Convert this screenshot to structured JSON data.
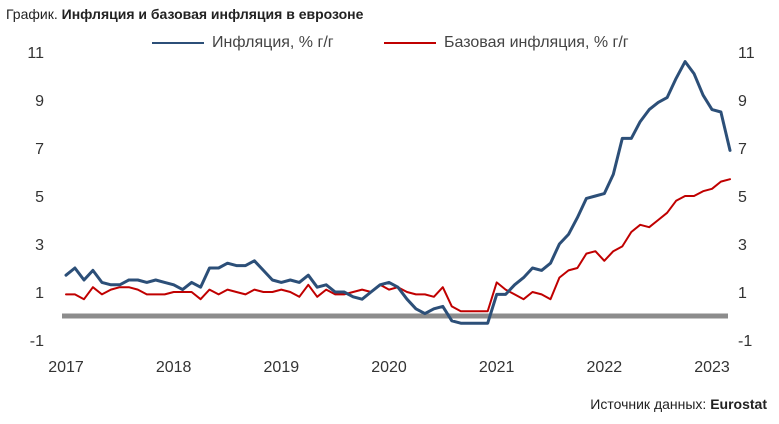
{
  "title_prefix": "График.",
  "title_main": "Инфляция и базовая инфляция в еврозоне",
  "source_label": "Источник данных:",
  "source_name": "Eurostat",
  "colors": {
    "inflation": "#2c4f78",
    "core": "#c00000",
    "zero_line": "#8c8c8c",
    "axis_text": "#333333"
  },
  "chart_data": {
    "type": "line",
    "title": "Инфляция и базовая инфляция в еврозоне",
    "xlabel": "",
    "ylabel": "",
    "ylim": [
      -1,
      11
    ],
    "xlim": [
      2017.0,
      2023.25
    ],
    "y_ticks": [
      -1,
      1,
      3,
      5,
      7,
      9,
      11
    ],
    "x_ticks": [
      2017,
      2018,
      2019,
      2020,
      2021,
      2022,
      2023
    ],
    "x_tick_labels": [
      "2017",
      "2018",
      "2019",
      "2020",
      "2021",
      "2022",
      "2023"
    ],
    "y_tick_labels": [
      "-1",
      "1",
      "3",
      "5",
      "7",
      "9",
      "11"
    ],
    "zero_line": 0,
    "legend_position": "top",
    "series": [
      {
        "name": "Инфляция, % г/г",
        "values": [
          [
            2017.0,
            1.7
          ],
          [
            2017.083,
            2.0
          ],
          [
            2017.167,
            1.5
          ],
          [
            2017.25,
            1.9
          ],
          [
            2017.333,
            1.4
          ],
          [
            2017.417,
            1.3
          ],
          [
            2017.5,
            1.3
          ],
          [
            2017.583,
            1.5
          ],
          [
            2017.667,
            1.5
          ],
          [
            2017.75,
            1.4
          ],
          [
            2017.833,
            1.5
          ],
          [
            2017.917,
            1.4
          ],
          [
            2018.0,
            1.3
          ],
          [
            2018.083,
            1.1
          ],
          [
            2018.167,
            1.4
          ],
          [
            2018.25,
            1.2
          ],
          [
            2018.333,
            2.0
          ],
          [
            2018.417,
            2.0
          ],
          [
            2018.5,
            2.2
          ],
          [
            2018.583,
            2.1
          ],
          [
            2018.667,
            2.1
          ],
          [
            2018.75,
            2.3
          ],
          [
            2018.833,
            1.9
          ],
          [
            2018.917,
            1.5
          ],
          [
            2019.0,
            1.4
          ],
          [
            2019.083,
            1.5
          ],
          [
            2019.167,
            1.4
          ],
          [
            2019.25,
            1.7
          ],
          [
            2019.333,
            1.2
          ],
          [
            2019.417,
            1.3
          ],
          [
            2019.5,
            1.0
          ],
          [
            2019.583,
            1.0
          ],
          [
            2019.667,
            0.8
          ],
          [
            2019.75,
            0.7
          ],
          [
            2019.833,
            1.0
          ],
          [
            2019.917,
            1.3
          ],
          [
            2020.0,
            1.4
          ],
          [
            2020.083,
            1.2
          ],
          [
            2020.167,
            0.7
          ],
          [
            2020.25,
            0.3
          ],
          [
            2020.333,
            0.1
          ],
          [
            2020.417,
            0.3
          ],
          [
            2020.5,
            0.4
          ],
          [
            2020.583,
            -0.2
          ],
          [
            2020.667,
            -0.3
          ],
          [
            2020.75,
            -0.3
          ],
          [
            2020.833,
            -0.3
          ],
          [
            2020.917,
            -0.3
          ],
          [
            2021.0,
            0.9
          ],
          [
            2021.083,
            0.9
          ],
          [
            2021.167,
            1.3
          ],
          [
            2021.25,
            1.6
          ],
          [
            2021.333,
            2.0
          ],
          [
            2021.417,
            1.9
          ],
          [
            2021.5,
            2.2
          ],
          [
            2021.583,
            3.0
          ],
          [
            2021.667,
            3.4
          ],
          [
            2021.75,
            4.1
          ],
          [
            2021.833,
            4.9
          ],
          [
            2021.917,
            5.0
          ],
          [
            2022.0,
            5.1
          ],
          [
            2022.083,
            5.9
          ],
          [
            2022.167,
            7.4
          ],
          [
            2022.25,
            7.4
          ],
          [
            2022.333,
            8.1
          ],
          [
            2022.417,
            8.6
          ],
          [
            2022.5,
            8.9
          ],
          [
            2022.583,
            9.1
          ],
          [
            2022.667,
            9.9
          ],
          [
            2022.75,
            10.6
          ],
          [
            2022.833,
            10.1
          ],
          [
            2022.917,
            9.2
          ],
          [
            2023.0,
            8.6
          ],
          [
            2023.083,
            8.5
          ],
          [
            2023.167,
            6.9
          ]
        ]
      },
      {
        "name": "Базовая инфляция, % г/г",
        "values": [
          [
            2017.0,
            0.9
          ],
          [
            2017.083,
            0.9
          ],
          [
            2017.167,
            0.7
          ],
          [
            2017.25,
            1.2
          ],
          [
            2017.333,
            0.9
          ],
          [
            2017.417,
            1.1
          ],
          [
            2017.5,
            1.2
          ],
          [
            2017.583,
            1.2
          ],
          [
            2017.667,
            1.1
          ],
          [
            2017.75,
            0.9
          ],
          [
            2017.833,
            0.9
          ],
          [
            2017.917,
            0.9
          ],
          [
            2018.0,
            1.0
          ],
          [
            2018.083,
            1.0
          ],
          [
            2018.167,
            1.0
          ],
          [
            2018.25,
            0.7
          ],
          [
            2018.333,
            1.1
          ],
          [
            2018.417,
            0.9
          ],
          [
            2018.5,
            1.1
          ],
          [
            2018.583,
            1.0
          ],
          [
            2018.667,
            0.9
          ],
          [
            2018.75,
            1.1
          ],
          [
            2018.833,
            1.0
          ],
          [
            2018.917,
            1.0
          ],
          [
            2019.0,
            1.1
          ],
          [
            2019.083,
            1.0
          ],
          [
            2019.167,
            0.8
          ],
          [
            2019.25,
            1.3
          ],
          [
            2019.333,
            0.8
          ],
          [
            2019.417,
            1.1
          ],
          [
            2019.5,
            0.9
          ],
          [
            2019.583,
            0.9
          ],
          [
            2019.667,
            1.0
          ],
          [
            2019.75,
            1.1
          ],
          [
            2019.833,
            1.0
          ],
          [
            2019.917,
            1.3
          ],
          [
            2020.0,
            1.1
          ],
          [
            2020.083,
            1.2
          ],
          [
            2020.167,
            1.0
          ],
          [
            2020.25,
            0.9
          ],
          [
            2020.333,
            0.9
          ],
          [
            2020.417,
            0.8
          ],
          [
            2020.5,
            1.2
          ],
          [
            2020.583,
            0.4
          ],
          [
            2020.667,
            0.2
          ],
          [
            2020.75,
            0.2
          ],
          [
            2020.833,
            0.2
          ],
          [
            2020.917,
            0.2
          ],
          [
            2021.0,
            1.4
          ],
          [
            2021.083,
            1.1
          ],
          [
            2021.167,
            0.9
          ],
          [
            2021.25,
            0.7
          ],
          [
            2021.333,
            1.0
          ],
          [
            2021.417,
            0.9
          ],
          [
            2021.5,
            0.7
          ],
          [
            2021.583,
            1.6
          ],
          [
            2021.667,
            1.9
          ],
          [
            2021.75,
            2.0
          ],
          [
            2021.833,
            2.6
          ],
          [
            2021.917,
            2.7
          ],
          [
            2022.0,
            2.3
          ],
          [
            2022.083,
            2.7
          ],
          [
            2022.167,
            2.9
          ],
          [
            2022.25,
            3.5
          ],
          [
            2022.333,
            3.8
          ],
          [
            2022.417,
            3.7
          ],
          [
            2022.5,
            4.0
          ],
          [
            2022.583,
            4.3
          ],
          [
            2022.667,
            4.8
          ],
          [
            2022.75,
            5.0
          ],
          [
            2022.833,
            5.0
          ],
          [
            2022.917,
            5.2
          ],
          [
            2023.0,
            5.3
          ],
          [
            2023.083,
            5.6
          ],
          [
            2023.167,
            5.7
          ]
        ]
      }
    ]
  }
}
